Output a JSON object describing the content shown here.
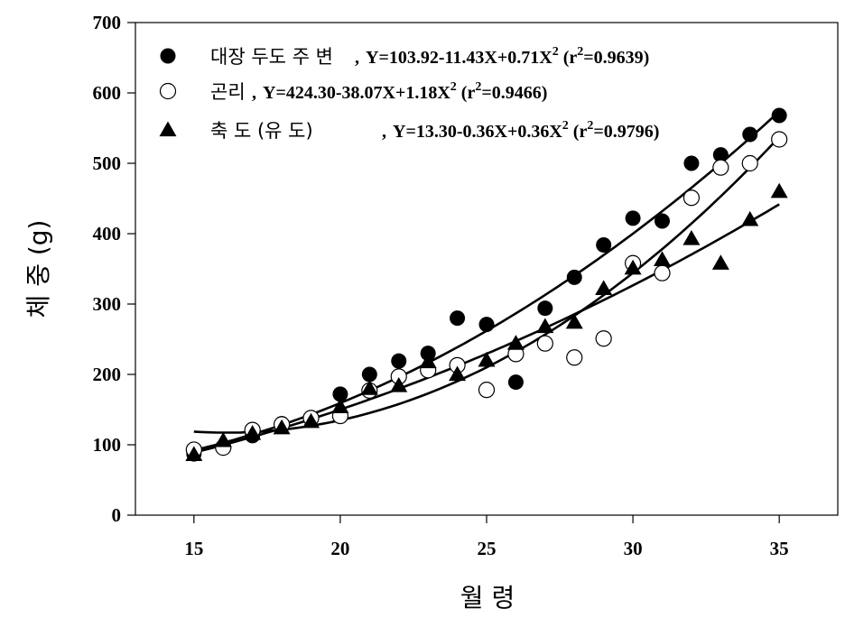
{
  "chart_data": {
    "type": "scatter",
    "xlabel": "월 령",
    "ylabel": "체 중 (g)",
    "xlim": [
      13,
      37
    ],
    "ylim": [
      0,
      700
    ],
    "xticks": [
      15,
      20,
      25,
      30,
      35
    ],
    "yticks": [
      0,
      100,
      200,
      300,
      400,
      500,
      600,
      700
    ],
    "grid": false,
    "legend_position": "top-left",
    "series": [
      {
        "name": "대장 두도 주 변",
        "equation": "Y=103.92-11.43X+0.71X",
        "r2": "0.9639",
        "marker": "filled-circle",
        "fit": [
          103.92,
          -11.43,
          0.71
        ],
        "x": [
          15,
          16,
          17,
          18,
          19,
          20,
          21,
          22,
          23,
          24,
          25,
          26,
          27,
          28,
          29,
          30,
          31,
          32,
          33,
          34,
          35
        ],
        "y": [
          87,
          97,
          113,
          130,
          137,
          172,
          200,
          219,
          230,
          280,
          271,
          189,
          294,
          338,
          384,
          422,
          418,
          500,
          512,
          541,
          568
        ]
      },
      {
        "name": "곤리",
        "equation": "Y=424.30-38.07X+1.18X",
        "r2": "0.9466",
        "marker": "open-circle",
        "fit": [
          424.3,
          -38.07,
          1.18
        ],
        "x": [
          15,
          16,
          17,
          18,
          19,
          20,
          21,
          22,
          23,
          24,
          25,
          26,
          27,
          28,
          29,
          30,
          31,
          32,
          33,
          34,
          35
        ],
        "y": [
          93,
          96,
          121,
          129,
          138,
          141,
          177,
          197,
          206,
          213,
          178,
          229,
          244,
          224,
          251,
          358,
          344,
          451,
          494,
          500,
          534
        ]
      },
      {
        "name": "축 도 (유 도)",
        "equation": "Y=13.30-0.36X+0.36X",
        "r2": "0.9796",
        "marker": "filled-triangle",
        "fit": [
          13.3,
          -0.36,
          0.36
        ],
        "x": [
          15,
          16,
          17,
          18,
          19,
          20,
          21,
          22,
          23,
          24,
          25,
          26,
          27,
          28,
          29,
          30,
          31,
          32,
          33,
          34,
          35
        ],
        "y": [
          86,
          106,
          116,
          124,
          133,
          154,
          180,
          184,
          218,
          200,
          220,
          244,
          268,
          274,
          322,
          351,
          363,
          393,
          358,
          420,
          460
        ]
      }
    ]
  }
}
